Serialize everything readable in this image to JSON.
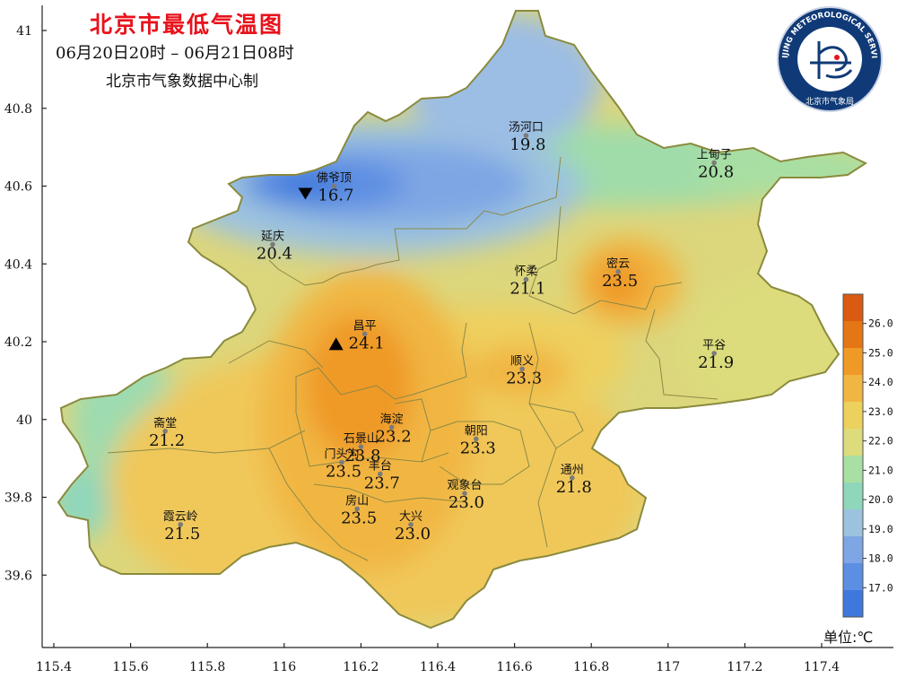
{
  "title": "北京市最低气温图",
  "subtitle": "06月20日20时  –  06月21日08时",
  "source": "北京市气象数据中心制",
  "unit": "单位:℃",
  "logo": {
    "text": "BEIJING METEOROLOGICAL SERVICE",
    "cn": "北京市气象局"
  },
  "axes": {
    "x_ticks": [
      "115.4",
      "115.6",
      "115.8",
      "116",
      "116.2",
      "116.4",
      "116.6",
      "116.8",
      "117",
      "117.2",
      "117.4"
    ],
    "y_ticks": [
      "39.6",
      "39.8",
      "40",
      "40.2",
      "40.4",
      "40.6",
      "40.8",
      "41"
    ]
  },
  "legend": {
    "labels": [
      "17.0",
      "18.0",
      "19.0",
      "20.0",
      "21.0",
      "22.0",
      "23.0",
      "24.0",
      "25.0",
      "26.0"
    ],
    "colors": [
      "#3e78dc",
      "#5c8ee2",
      "#7ea6e4",
      "#9cc2df",
      "#8fd7bb",
      "#a8dfa2",
      "#dcdc7c",
      "#ecd15e",
      "#f1b642",
      "#ef9926",
      "#e47615",
      "#d95a10"
    ]
  },
  "stations": [
    {
      "name": "汤河口",
      "value": "19.8",
      "lon": 116.63,
      "lat": 40.73,
      "marker": ""
    },
    {
      "name": "上甸子",
      "value": "20.8",
      "lon": 117.12,
      "lat": 40.66,
      "marker": ""
    },
    {
      "name": "佛爷顶",
      "value": "16.7",
      "lon": 116.13,
      "lat": 40.6,
      "marker": "min"
    },
    {
      "name": "延庆",
      "value": "20.4",
      "lon": 115.97,
      "lat": 40.45,
      "marker": ""
    },
    {
      "name": "怀柔",
      "value": "21.1",
      "lon": 116.63,
      "lat": 40.36,
      "marker": ""
    },
    {
      "name": "密云",
      "value": "23.5",
      "lon": 116.87,
      "lat": 40.38,
      "marker": ""
    },
    {
      "name": "昌平",
      "value": "24.1",
      "lon": 116.21,
      "lat": 40.22,
      "marker": "max"
    },
    {
      "name": "平谷",
      "value": "21.9",
      "lon": 117.12,
      "lat": 40.17,
      "marker": ""
    },
    {
      "name": "顺义",
      "value": "23.3",
      "lon": 116.62,
      "lat": 40.13,
      "marker": ""
    },
    {
      "name": "海淀",
      "value": "23.2",
      "lon": 116.28,
      "lat": 39.98,
      "marker": ""
    },
    {
      "name": "朝阳",
      "value": "23.3",
      "lon": 116.5,
      "lat": 39.95,
      "marker": ""
    },
    {
      "name": "斋堂",
      "value": "21.2",
      "lon": 115.69,
      "lat": 39.97,
      "marker": ""
    },
    {
      "name": "石景山",
      "value": "23.8",
      "lon": 116.2,
      "lat": 39.93,
      "marker": ""
    },
    {
      "name": "门头沟",
      "value": "23.5",
      "lon": 116.15,
      "lat": 39.89,
      "marker": ""
    },
    {
      "name": "丰台",
      "value": "23.7",
      "lon": 116.25,
      "lat": 39.86,
      "marker": ""
    },
    {
      "name": "观象台",
      "value": "23.0",
      "lon": 116.47,
      "lat": 39.81,
      "marker": ""
    },
    {
      "name": "通州",
      "value": "21.8",
      "lon": 116.75,
      "lat": 39.85,
      "marker": ""
    },
    {
      "name": "霞云岭",
      "value": "21.5",
      "lon": 115.73,
      "lat": 39.73,
      "marker": ""
    },
    {
      "name": "房山",
      "value": "23.5",
      "lon": 116.19,
      "lat": 39.77,
      "marker": ""
    },
    {
      "name": "大兴",
      "value": "23.0",
      "lon": 116.33,
      "lat": 39.73,
      "marker": ""
    }
  ]
}
